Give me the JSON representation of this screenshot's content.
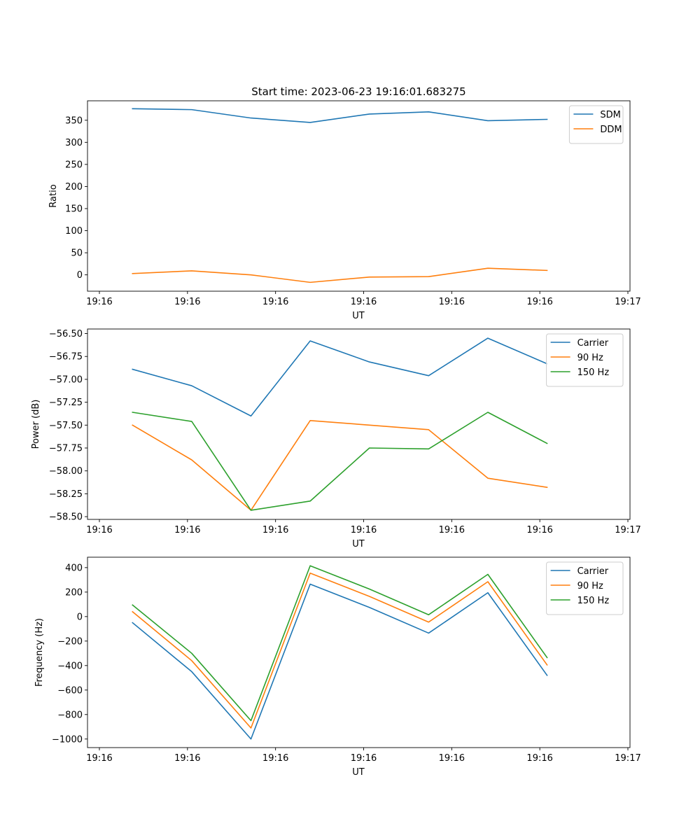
{
  "figure": {
    "title": "Start time: 2023-06-23 19:16:01.683275"
  },
  "colors": {
    "series_1": "#1f77b4",
    "series_2": "#ff7f0e",
    "series_3": "#2ca02c",
    "axes": "#000000",
    "legend_border": "#cccccc"
  },
  "chart_data": [
    {
      "type": "line",
      "title": "Start time: 2023-06-23 19:16:01.683275",
      "xlabel": "UT",
      "ylabel": "Ratio",
      "x_ticks": [
        "19:16",
        "19:16",
        "19:16",
        "19:16",
        "19:16",
        "19:16",
        "19:17"
      ],
      "x_index_range": [
        -0.76,
        8.4
      ],
      "ylim": [
        -37,
        394
      ],
      "y_ticks": [
        0,
        50,
        100,
        150,
        200,
        250,
        300,
        350
      ],
      "grid": false,
      "legend_position": "top-right",
      "series": [
        {
          "name": "SDM",
          "values": [
            376,
            374,
            355,
            345,
            364,
            369,
            349,
            352
          ]
        },
        {
          "name": "DDM",
          "values": [
            3,
            9,
            0,
            -17,
            -5,
            -4,
            15,
            10
          ]
        }
      ]
    },
    {
      "type": "line",
      "title": "",
      "xlabel": "UT",
      "ylabel": "Power (dB)",
      "x_ticks": [
        "19:16",
        "19:16",
        "19:16",
        "19:16",
        "19:16",
        "19:16",
        "19:17"
      ],
      "x_index_range": [
        -0.76,
        8.4
      ],
      "ylim": [
        -58.53,
        -56.45
      ],
      "y_ticks": [
        -58.5,
        -58.25,
        -58.0,
        -57.75,
        -57.5,
        -57.25,
        -57.0,
        -56.75,
        -56.5
      ],
      "grid": false,
      "legend_position": "top-right",
      "series": [
        {
          "name": "Carrier",
          "values": [
            -56.89,
            -57.07,
            -57.4,
            -56.58,
            -56.81,
            -56.96,
            -56.55,
            -56.83
          ]
        },
        {
          "name": "90 Hz",
          "values": [
            -57.5,
            -57.88,
            -58.43,
            -57.45,
            -57.5,
            -57.55,
            -58.08,
            -58.18
          ]
        },
        {
          "name": "150 Hz",
          "values": [
            -57.36,
            -57.46,
            -58.43,
            -58.33,
            -57.75,
            -57.76,
            -57.36,
            -57.7
          ]
        }
      ]
    },
    {
      "type": "line",
      "title": "",
      "xlabel": "UT",
      "ylabel": "Frequency (Hz)",
      "x_ticks": [
        "19:16",
        "19:16",
        "19:16",
        "19:16",
        "19:16",
        "19:16",
        "19:17"
      ],
      "x_index_range": [
        -0.76,
        8.4
      ],
      "ylim": [
        -1070,
        485
      ],
      "y_ticks": [
        -1000,
        -800,
        -600,
        -400,
        -200,
        0,
        200,
        400
      ],
      "grid": false,
      "legend_position": "top-right",
      "series": [
        {
          "name": "Carrier",
          "values": [
            -50,
            -450,
            -1000,
            265,
            75,
            -135,
            195,
            -480
          ]
        },
        {
          "name": "90 Hz",
          "values": [
            40,
            -360,
            -910,
            355,
            165,
            -45,
            285,
            -395
          ]
        },
        {
          "name": "150 Hz",
          "values": [
            95,
            -300,
            -850,
            415,
            225,
            15,
            345,
            -335
          ]
        }
      ]
    }
  ]
}
